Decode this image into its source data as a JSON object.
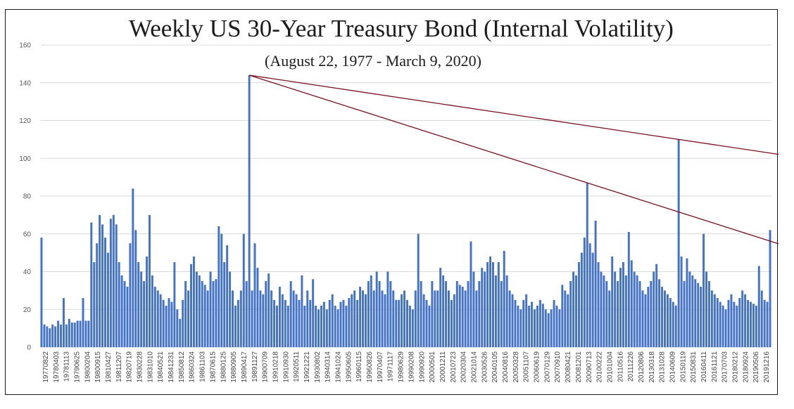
{
  "chart_data": {
    "type": "bar",
    "title": "Weekly US 30-Year Treasury Bond (Internal Volatility)",
    "subtitle": "(August 22, 1977 - March 9, 2020)",
    "xlabel": "",
    "ylabel": "",
    "ylim": [
      0,
      160
    ],
    "yticks": [
      0,
      20,
      40,
      60,
      80,
      100,
      120,
      140,
      160
    ],
    "grid": true,
    "legend": "none",
    "bar_color": "#4472c4",
    "trendline_color": "#7b1020",
    "x_tick_labels": [
      "19770822",
      "19780403",
      "19781113",
      "19790625",
      "19800204",
      "19800915",
      "19810427",
      "19811207",
      "19820719",
      "19830228",
      "19831010",
      "19840521",
      "19841231",
      "19850812",
      "19860324",
      "19861103",
      "19870615",
      "19880125",
      "19880905",
      "19890417",
      "19891127",
      "19900709",
      "19910218",
      "19910930",
      "19920511",
      "19921221",
      "19930802",
      "19940314",
      "19941024",
      "19950605",
      "19960115",
      "19960826",
      "19970407",
      "19971117",
      "19980629",
      "19990208",
      "19990920",
      "20000501",
      "20001211",
      "20010723",
      "20020304",
      "20021014",
      "20030526",
      "20040105",
      "20040816",
      "20050328",
      "20051107",
      "20060619",
      "20070129",
      "20070910",
      "20080421",
      "20081201",
      "20090713",
      "20100222",
      "20101004",
      "20110516",
      "20111226",
      "20120806",
      "20130318",
      "20131028",
      "20140609",
      "20150119",
      "20150831",
      "20160411",
      "20161121",
      "20170703",
      "20180212",
      "20180924",
      "20190506",
      "20191216"
    ],
    "values": [
      58,
      12,
      11,
      10,
      12,
      11,
      14,
      12,
      26,
      12,
      15,
      13,
      13,
      14,
      14,
      26,
      14,
      14,
      66,
      45,
      55,
      70,
      65,
      58,
      50,
      68,
      70,
      65,
      45,
      38,
      35,
      32,
      55,
      84,
      62,
      45,
      40,
      35,
      48,
      70,
      38,
      32,
      30,
      28,
      25,
      22,
      26,
      24,
      45,
      20,
      15,
      25,
      35,
      30,
      44,
      48,
      40,
      38,
      35,
      33,
      30,
      40,
      35,
      36,
      64,
      60,
      45,
      54,
      40,
      30,
      22,
      25,
      30,
      60,
      35,
      144,
      30,
      55,
      42,
      30,
      28,
      35,
      39,
      30,
      25,
      22,
      32,
      28,
      25,
      22,
      35,
      30,
      28,
      25,
      38,
      22,
      30,
      25,
      36,
      22,
      20,
      22,
      24,
      20,
      25,
      28,
      22,
      20,
      24,
      25,
      22,
      26,
      28,
      30,
      25,
      32,
      30,
      28,
      35,
      38,
      30,
      40,
      35,
      30,
      28,
      40,
      35,
      30,
      25,
      25,
      28,
      30,
      25,
      22,
      20,
      30,
      60,
      35,
      28,
      25,
      22,
      35,
      30,
      30,
      42,
      38,
      35,
      30,
      25,
      28,
      35,
      33,
      32,
      30,
      35,
      56,
      40,
      30,
      35,
      42,
      40,
      45,
      48,
      45,
      38,
      45,
      35,
      51,
      38,
      30,
      28,
      25,
      22,
      20,
      25,
      28,
      22,
      24,
      20,
      22,
      25,
      23,
      20,
      18,
      20,
      25,
      22,
      20,
      33,
      30,
      28,
      35,
      40,
      38,
      45,
      50,
      58,
      87,
      55,
      50,
      67,
      45,
      40,
      38,
      35,
      30,
      48,
      40,
      35,
      42,
      45,
      38,
      61,
      46,
      40,
      38,
      35,
      30,
      28,
      32,
      35,
      40,
      44,
      36,
      32,
      30,
      28,
      26,
      24,
      22,
      110,
      48,
      35,
      47,
      40,
      38,
      36,
      34,
      32,
      60,
      40,
      35,
      30,
      28,
      26,
      24,
      22,
      20,
      25,
      28,
      24,
      22,
      26,
      30,
      28,
      25,
      24,
      23,
      22,
      43,
      30,
      25,
      24,
      62
    ]
  }
}
